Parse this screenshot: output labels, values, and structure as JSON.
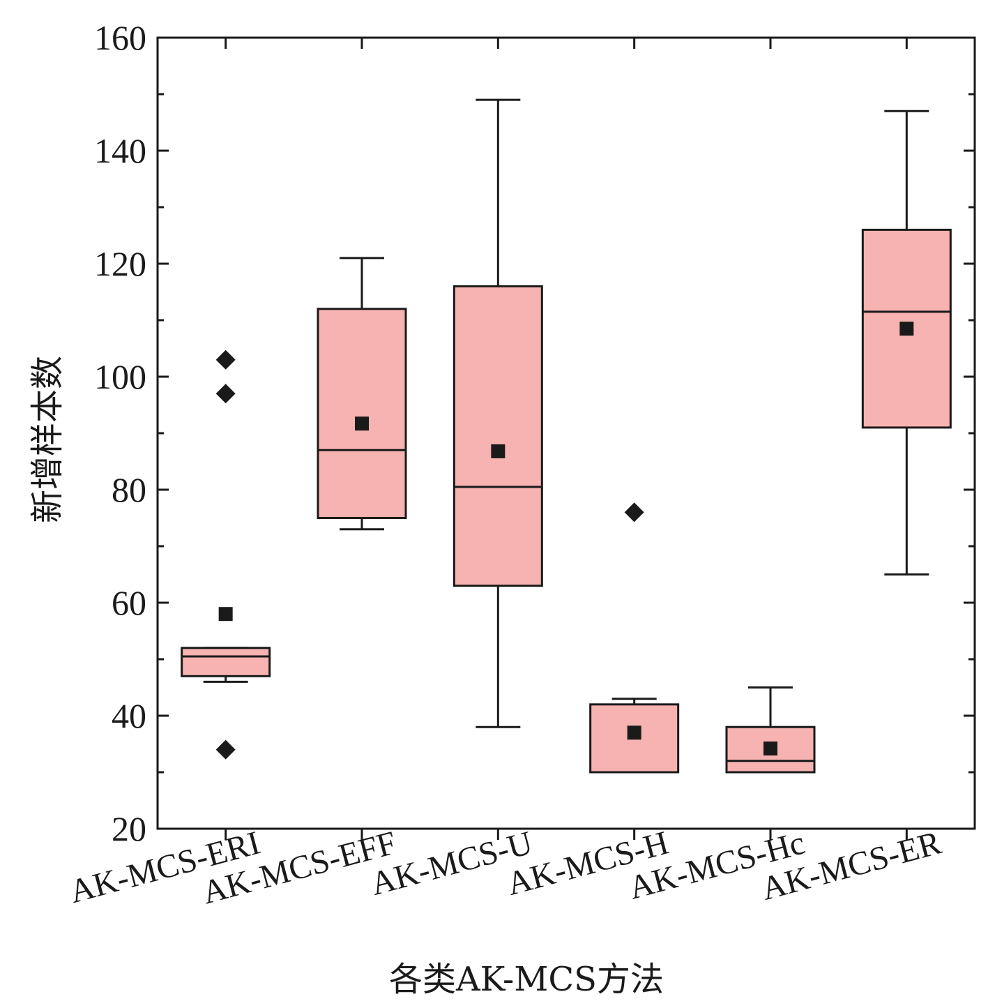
{
  "chart_data": {
    "type": "box",
    "title": "",
    "xlabel": "各类AK-MCS方法",
    "ylabel": "新增样本数",
    "ylim": [
      20,
      160
    ],
    "yticks": [
      20,
      40,
      60,
      80,
      100,
      120,
      140,
      160
    ],
    "grid": false,
    "categories": [
      "AK-MCS-ERI",
      "AK-MCS-EFF",
      "AK-MCS-U",
      "AK-MCS-H",
      "AK-MCS-Hc",
      "AK-MCS-ER"
    ],
    "boxes": [
      {
        "whisker_low": 46,
        "q1": 47,
        "median": 50.5,
        "q3": 52,
        "whisker_high": 52,
        "mean": 58,
        "outliers": [
          103,
          97,
          34
        ]
      },
      {
        "whisker_low": 73,
        "q1": 75,
        "median": 87,
        "q3": 112,
        "whisker_high": 121,
        "mean": 91.7,
        "outliers": []
      },
      {
        "whisker_low": 38,
        "q1": 63,
        "median": 80.5,
        "q3": 116,
        "whisker_high": 149,
        "mean": 86.8,
        "outliers": []
      },
      {
        "whisker_low": 30,
        "q1": 30,
        "median": 30,
        "q3": 42,
        "whisker_high": 43,
        "mean": 37,
        "outliers": [
          76
        ]
      },
      {
        "whisker_low": 30,
        "q1": 30,
        "median": 32,
        "q3": 38,
        "whisker_high": 45,
        "mean": 34.2,
        "outliers": []
      },
      {
        "whisker_low": 65,
        "q1": 91,
        "median": 111.5,
        "q3": 126,
        "whisker_high": 147,
        "mean": 108.5,
        "outliers": []
      }
    ],
    "colors": {
      "box_fill": "#f7b3b1",
      "stroke": "#1a1a1a",
      "marker": "#1a1a1a"
    }
  }
}
